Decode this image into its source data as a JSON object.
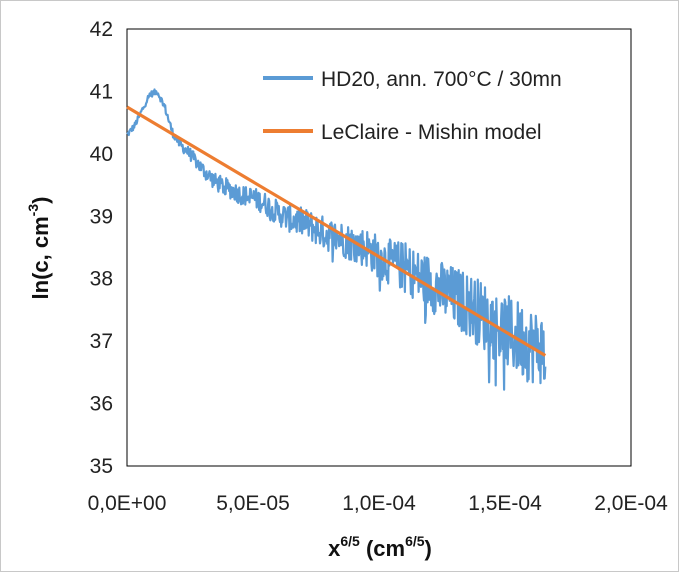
{
  "chart_data": {
    "type": "line",
    "xlabel_base": "x",
    "xlabel_exp": "6/5",
    "xlabel_unit_open": " (cm",
    "xlabel_unit_exp": "6/5",
    "xlabel_unit_close": ")",
    "ylabel_main": "ln(c, cm",
    "ylabel_exp": "-3",
    "ylabel_close": ")",
    "xlim": [
      0,
      0.0002
    ],
    "ylim": [
      35,
      42
    ],
    "x_ticks": [
      0,
      5e-05,
      0.0001,
      0.00015,
      0.0002
    ],
    "x_tick_labels": [
      "0,0E+00",
      "5,0E-05",
      "1,0E-04",
      "1,5E-04",
      "2,0E-04"
    ],
    "y_ticks": [
      35,
      36,
      37,
      38,
      39,
      40,
      41,
      42
    ],
    "y_tick_labels": [
      "35",
      "36",
      "37",
      "38",
      "39",
      "40",
      "41",
      "42"
    ],
    "grid": false,
    "legend_position": "top-right",
    "series": [
      {
        "name": "HD20, ann. 700°C / 30mn",
        "color": "#5b9bd5",
        "style": "noisy",
        "x": [
          0,
          3e-06,
          6e-06,
          9e-06,
          1.2e-05,
          1.5e-05,
          1.8e-05,
          2.1e-05,
          2.5e-05,
          3e-05,
          3.5e-05,
          4e-05,
          4.5e-05,
          5e-05,
          5.5e-05,
          6e-05,
          6.5e-05,
          7e-05,
          7.5e-05,
          8e-05,
          8.5e-05,
          9e-05,
          9.5e-05,
          0.0001,
          0.000105,
          0.00011,
          0.000115,
          0.00012,
          0.000125,
          0.00013,
          0.000135,
          0.00014,
          0.000145,
          0.00015,
          0.000155,
          0.00016,
          0.000163,
          0.000166
        ],
        "values": [
          40.3,
          40.45,
          40.7,
          40.95,
          41.0,
          40.75,
          40.35,
          40.15,
          40.0,
          39.75,
          39.55,
          39.45,
          39.35,
          39.3,
          39.2,
          39.05,
          38.95,
          38.9,
          38.8,
          38.7,
          38.65,
          38.55,
          38.5,
          38.35,
          38.25,
          38.2,
          38.05,
          37.95,
          37.8,
          37.7,
          37.6,
          37.45,
          37.3,
          37.15,
          37.05,
          36.95,
          36.9,
          36.85
        ],
        "noise_amplitude": [
          0.05,
          0.05,
          0.05,
          0.05,
          0.05,
          0.06,
          0.07,
          0.08,
          0.1,
          0.12,
          0.14,
          0.15,
          0.16,
          0.17,
          0.18,
          0.2,
          0.22,
          0.24,
          0.26,
          0.27,
          0.28,
          0.3,
          0.32,
          0.35,
          0.37,
          0.4,
          0.42,
          0.45,
          0.48,
          0.5,
          0.52,
          0.55,
          0.58,
          0.6,
          0.62,
          0.62,
          0.6,
          0.55
        ]
      },
      {
        "name": "LeClaire - Mishin model",
        "color": "#ed7d31",
        "style": "line",
        "x": [
          0,
          0.000166
        ],
        "values": [
          40.75,
          36.77
        ]
      }
    ]
  }
}
